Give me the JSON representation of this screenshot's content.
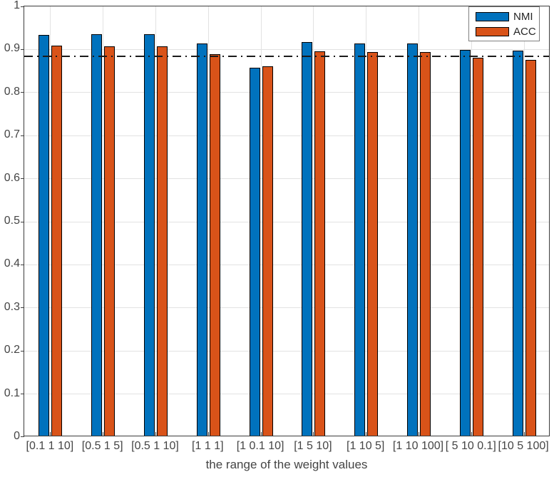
{
  "chart_data": {
    "type": "bar",
    "title": "",
    "xlabel": "the range of the weight values",
    "ylabel": "",
    "ylim": [
      0,
      1
    ],
    "grid": true,
    "legend_position": "top-right",
    "categories": [
      "[0.1 1 10]",
      "[0.5 1 5]",
      "[0.5 1 10]",
      "[1 1 1]",
      "[1 0.1 10]",
      "[1 5 10]",
      "[1 10 5]",
      "[1 10 100]",
      "[ 5 10 0.1]",
      "[10 5 100]"
    ],
    "series": [
      {
        "name": "NMI",
        "color": "#0072BD",
        "values": [
          0.93,
          0.932,
          0.932,
          0.911,
          0.855,
          0.914,
          0.91,
          0.911,
          0.896,
          0.894
        ]
      },
      {
        "name": "ACC",
        "color": "#D95319",
        "values": [
          0.905,
          0.904,
          0.904,
          0.886,
          0.858,
          0.892,
          0.89,
          0.89,
          0.878,
          0.872
        ]
      }
    ],
    "yticks": [
      {
        "value": 0,
        "label": "0"
      },
      {
        "value": 0.1,
        "label": "0.1"
      },
      {
        "value": 0.2,
        "label": "0.2"
      },
      {
        "value": 0.3,
        "label": "0.3"
      },
      {
        "value": 0.4,
        "label": "0.4"
      },
      {
        "value": 0.5,
        "label": "0.5"
      },
      {
        "value": 0.6,
        "label": "0.6"
      },
      {
        "value": 0.7,
        "label": "0.7"
      },
      {
        "value": 0.8,
        "label": "0.8"
      },
      {
        "value": 0.9,
        "label": "0.9"
      },
      {
        "value": 1,
        "label": "1"
      }
    ],
    "reference_line": {
      "value": 0.884,
      "style": "dash-dot",
      "color": "#1a1a1a"
    }
  },
  "colors": {
    "nmi_bar": "#0072BD",
    "acc_bar": "#D95319",
    "bar_edge": "#000000",
    "grid": "#e2e2e2",
    "axis": "#3c3c3c",
    "tick_text": "#454545"
  }
}
